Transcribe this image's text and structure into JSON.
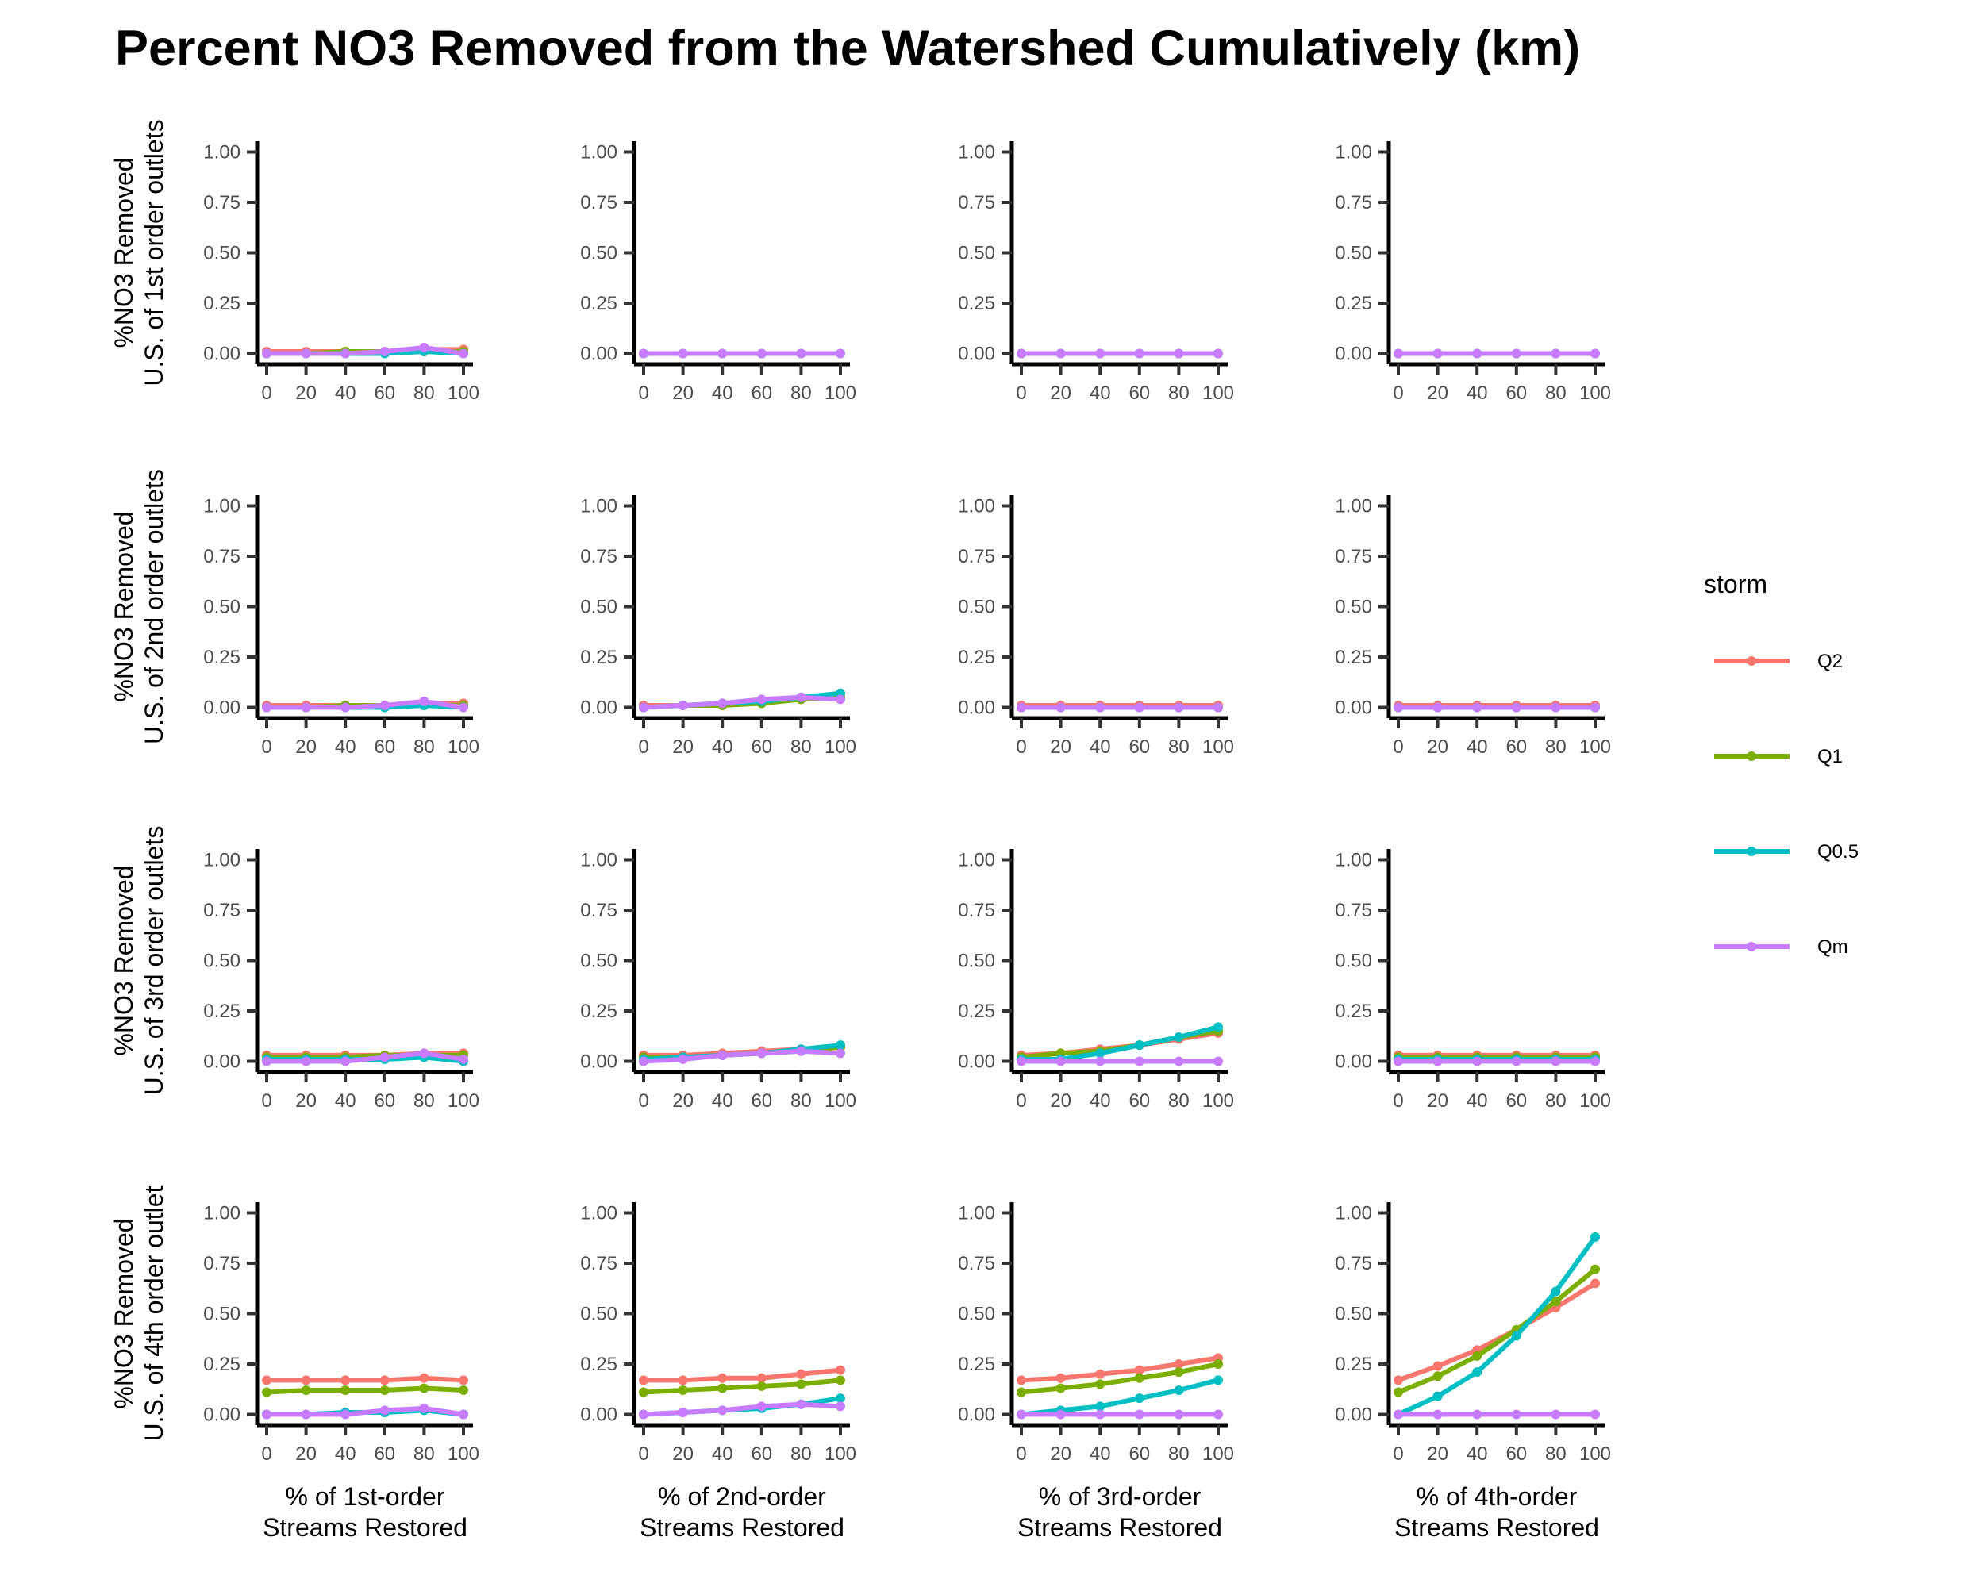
{
  "chart_data": {
    "type": "line",
    "title": "Percent NO3 Removed from the Watershed Cumulatively (km)",
    "x": [
      0,
      20,
      40,
      60,
      80,
      100
    ],
    "x_ticks": [
      "0",
      "20",
      "40",
      "60",
      "80",
      "100"
    ],
    "y_ticks": [
      "1.00",
      "0.75",
      "0.50",
      "0.25",
      "0.00"
    ],
    "ylim": [
      0,
      1
    ],
    "xlim": [
      0,
      100
    ],
    "grid": false,
    "legend": {
      "title": "storm",
      "placement": "right",
      "entries": [
        {
          "name": "Q2",
          "color": "#F8766D"
        },
        {
          "name": "Q1",
          "color": "#7CAE00"
        },
        {
          "name": "Q0.5",
          "color": "#00BFC4"
        },
        {
          "name": "Qm",
          "color": "#C77CFF"
        }
      ]
    },
    "row_labels": [
      [
        "%NO3 Removed",
        "U.S. of 1st order outlets"
      ],
      [
        "%NO3 Removed",
        "U.S. of 2nd order outlets"
      ],
      [
        "%NO3 Removed",
        "U.S. of 3rd order outlets"
      ],
      [
        "%NO3 Removed",
        "U.S. of 4th order outlet"
      ]
    ],
    "col_labels": [
      [
        "% of 1st-order",
        "Streams Restored"
      ],
      [
        "% of 2nd-order",
        "Streams Restored"
      ],
      [
        "% of 3rd-order",
        "Streams Restored"
      ],
      [
        "% of 4th-order",
        "Streams Restored"
      ]
    ],
    "panels": [
      [
        {
          "series": [
            {
              "name": "Q2",
              "values": [
                0.01,
                0.01,
                0.01,
                0.01,
                0.02,
                0.02
              ]
            },
            {
              "name": "Q1",
              "values": [
                0.0,
                0.0,
                0.01,
                0.01,
                0.01,
                0.01
              ]
            },
            {
              "name": "Q0.5",
              "values": [
                0.0,
                0.0,
                0.0,
                0.0,
                0.01,
                0.0
              ]
            },
            {
              "name": "Qm",
              "values": [
                0.0,
                0.0,
                0.0,
                0.01,
                0.03,
                0.0
              ]
            }
          ]
        },
        {
          "series": [
            {
              "name": "Q2",
              "values": [
                0.0,
                0.0,
                0.0,
                0.0,
                0.0,
                0.0
              ]
            },
            {
              "name": "Q1",
              "values": [
                0.0,
                0.0,
                0.0,
                0.0,
                0.0,
                0.0
              ]
            },
            {
              "name": "Q0.5",
              "values": [
                0.0,
                0.0,
                0.0,
                0.0,
                0.0,
                0.0
              ]
            },
            {
              "name": "Qm",
              "values": [
                0.0,
                0.0,
                0.0,
                0.0,
                0.0,
                0.0
              ]
            }
          ]
        },
        {
          "series": [
            {
              "name": "Q2",
              "values": [
                0.0,
                0.0,
                0.0,
                0.0,
                0.0,
                0.0
              ]
            },
            {
              "name": "Q1",
              "values": [
                0.0,
                0.0,
                0.0,
                0.0,
                0.0,
                0.0
              ]
            },
            {
              "name": "Q0.5",
              "values": [
                0.0,
                0.0,
                0.0,
                0.0,
                0.0,
                0.0
              ]
            },
            {
              "name": "Qm",
              "values": [
                0.0,
                0.0,
                0.0,
                0.0,
                0.0,
                0.0
              ]
            }
          ]
        },
        {
          "series": [
            {
              "name": "Q2",
              "values": [
                0.0,
                0.0,
                0.0,
                0.0,
                0.0,
                0.0
              ]
            },
            {
              "name": "Q1",
              "values": [
                0.0,
                0.0,
                0.0,
                0.0,
                0.0,
                0.0
              ]
            },
            {
              "name": "Q0.5",
              "values": [
                0.0,
                0.0,
                0.0,
                0.0,
                0.0,
                0.0
              ]
            },
            {
              "name": "Qm",
              "values": [
                0.0,
                0.0,
                0.0,
                0.0,
                0.0,
                0.0
              ]
            }
          ]
        }
      ],
      [
        {
          "series": [
            {
              "name": "Q2",
              "values": [
                0.01,
                0.01,
                0.01,
                0.01,
                0.02,
                0.02
              ]
            },
            {
              "name": "Q1",
              "values": [
                0.0,
                0.0,
                0.01,
                0.01,
                0.01,
                0.01
              ]
            },
            {
              "name": "Q0.5",
              "values": [
                0.0,
                0.0,
                0.0,
                0.0,
                0.01,
                0.0
              ]
            },
            {
              "name": "Qm",
              "values": [
                0.0,
                0.0,
                0.0,
                0.01,
                0.03,
                0.0
              ]
            }
          ]
        },
        {
          "series": [
            {
              "name": "Q2",
              "values": [
                0.01,
                0.01,
                0.02,
                0.03,
                0.04,
                0.05
              ]
            },
            {
              "name": "Q1",
              "values": [
                0.0,
                0.01,
                0.01,
                0.02,
                0.04,
                0.05
              ]
            },
            {
              "name": "Q0.5",
              "values": [
                0.0,
                0.01,
                0.02,
                0.03,
                0.05,
                0.07
              ]
            },
            {
              "name": "Qm",
              "values": [
                0.0,
                0.01,
                0.02,
                0.04,
                0.05,
                0.04
              ]
            }
          ]
        },
        {
          "series": [
            {
              "name": "Q2",
              "values": [
                0.01,
                0.01,
                0.01,
                0.01,
                0.01,
                0.01
              ]
            },
            {
              "name": "Q1",
              "values": [
                0.0,
                0.0,
                0.0,
                0.0,
                0.0,
                0.0
              ]
            },
            {
              "name": "Q0.5",
              "values": [
                0.0,
                0.0,
                0.0,
                0.0,
                0.0,
                0.0
              ]
            },
            {
              "name": "Qm",
              "values": [
                0.0,
                0.0,
                0.0,
                0.0,
                0.0,
                0.0
              ]
            }
          ]
        },
        {
          "series": [
            {
              "name": "Q2",
              "values": [
                0.01,
                0.01,
                0.01,
                0.01,
                0.01,
                0.01
              ]
            },
            {
              "name": "Q1",
              "values": [
                0.0,
                0.0,
                0.0,
                0.0,
                0.0,
                0.0
              ]
            },
            {
              "name": "Q0.5",
              "values": [
                0.0,
                0.0,
                0.0,
                0.0,
                0.0,
                0.0
              ]
            },
            {
              "name": "Qm",
              "values": [
                0.0,
                0.0,
                0.0,
                0.0,
                0.0,
                0.0
              ]
            }
          ]
        }
      ],
      [
        {
          "series": [
            {
              "name": "Q2",
              "values": [
                0.03,
                0.03,
                0.03,
                0.03,
                0.04,
                0.04
              ]
            },
            {
              "name": "Q1",
              "values": [
                0.02,
                0.02,
                0.02,
                0.03,
                0.03,
                0.03
              ]
            },
            {
              "name": "Q0.5",
              "values": [
                0.01,
                0.01,
                0.01,
                0.01,
                0.02,
                0.0
              ]
            },
            {
              "name": "Qm",
              "values": [
                0.0,
                0.0,
                0.0,
                0.02,
                0.04,
                0.01
              ]
            }
          ]
        },
        {
          "series": [
            {
              "name": "Q2",
              "values": [
                0.03,
                0.03,
                0.04,
                0.05,
                0.06,
                0.07
              ]
            },
            {
              "name": "Q1",
              "values": [
                0.02,
                0.02,
                0.03,
                0.04,
                0.05,
                0.07
              ]
            },
            {
              "name": "Q0.5",
              "values": [
                0.01,
                0.02,
                0.03,
                0.04,
                0.06,
                0.08
              ]
            },
            {
              "name": "Qm",
              "values": [
                0.0,
                0.01,
                0.03,
                0.04,
                0.05,
                0.04
              ]
            }
          ]
        },
        {
          "series": [
            {
              "name": "Q2",
              "values": [
                0.03,
                0.04,
                0.06,
                0.08,
                0.11,
                0.14
              ]
            },
            {
              "name": "Q1",
              "values": [
                0.02,
                0.04,
                0.05,
                0.08,
                0.12,
                0.15
              ]
            },
            {
              "name": "Q0.5",
              "values": [
                0.01,
                0.01,
                0.04,
                0.08,
                0.12,
                0.17
              ]
            },
            {
              "name": "Qm",
              "values": [
                0.0,
                0.0,
                0.0,
                0.0,
                0.0,
                0.0
              ]
            }
          ]
        },
        {
          "series": [
            {
              "name": "Q2",
              "values": [
                0.03,
                0.03,
                0.03,
                0.03,
                0.03,
                0.03
              ]
            },
            {
              "name": "Q1",
              "values": [
                0.02,
                0.02,
                0.02,
                0.02,
                0.02,
                0.02
              ]
            },
            {
              "name": "Q0.5",
              "values": [
                0.01,
                0.01,
                0.01,
                0.01,
                0.01,
                0.01
              ]
            },
            {
              "name": "Qm",
              "values": [
                0.0,
                0.0,
                0.0,
                0.0,
                0.0,
                0.0
              ]
            }
          ]
        }
      ],
      [
        {
          "series": [
            {
              "name": "Q2",
              "values": [
                0.17,
                0.17,
                0.17,
                0.17,
                0.18,
                0.17
              ]
            },
            {
              "name": "Q1",
              "values": [
                0.11,
                0.12,
                0.12,
                0.12,
                0.13,
                0.12
              ]
            },
            {
              "name": "Q0.5",
              "values": [
                0.0,
                0.0,
                0.01,
                0.01,
                0.02,
                0.0
              ]
            },
            {
              "name": "Qm",
              "values": [
                0.0,
                0.0,
                0.0,
                0.02,
                0.03,
                0.0
              ]
            }
          ]
        },
        {
          "series": [
            {
              "name": "Q2",
              "values": [
                0.17,
                0.17,
                0.18,
                0.18,
                0.2,
                0.22
              ]
            },
            {
              "name": "Q1",
              "values": [
                0.11,
                0.12,
                0.13,
                0.14,
                0.15,
                0.17
              ]
            },
            {
              "name": "Q0.5",
              "values": [
                0.0,
                0.01,
                0.02,
                0.03,
                0.05,
                0.08
              ]
            },
            {
              "name": "Qm",
              "values": [
                0.0,
                0.01,
                0.02,
                0.04,
                0.05,
                0.04
              ]
            }
          ]
        },
        {
          "series": [
            {
              "name": "Q2",
              "values": [
                0.17,
                0.18,
                0.2,
                0.22,
                0.25,
                0.28
              ]
            },
            {
              "name": "Q1",
              "values": [
                0.11,
                0.13,
                0.15,
                0.18,
                0.21,
                0.25
              ]
            },
            {
              "name": "Q0.5",
              "values": [
                0.0,
                0.02,
                0.04,
                0.08,
                0.12,
                0.17
              ]
            },
            {
              "name": "Qm",
              "values": [
                0.0,
                0.0,
                0.0,
                0.0,
                0.0,
                0.0
              ]
            }
          ]
        },
        {
          "series": [
            {
              "name": "Q2",
              "values": [
                0.17,
                0.24,
                0.32,
                0.42,
                0.53,
                0.65
              ]
            },
            {
              "name": "Q1",
              "values": [
                0.11,
                0.19,
                0.29,
                0.42,
                0.56,
                0.72
              ]
            },
            {
              "name": "Q0.5",
              "values": [
                0.0,
                0.09,
                0.21,
                0.39,
                0.61,
                0.88
              ]
            },
            {
              "name": "Qm",
              "values": [
                0.0,
                0.0,
                0.0,
                0.0,
                0.0,
                0.0
              ]
            }
          ]
        }
      ]
    ]
  }
}
